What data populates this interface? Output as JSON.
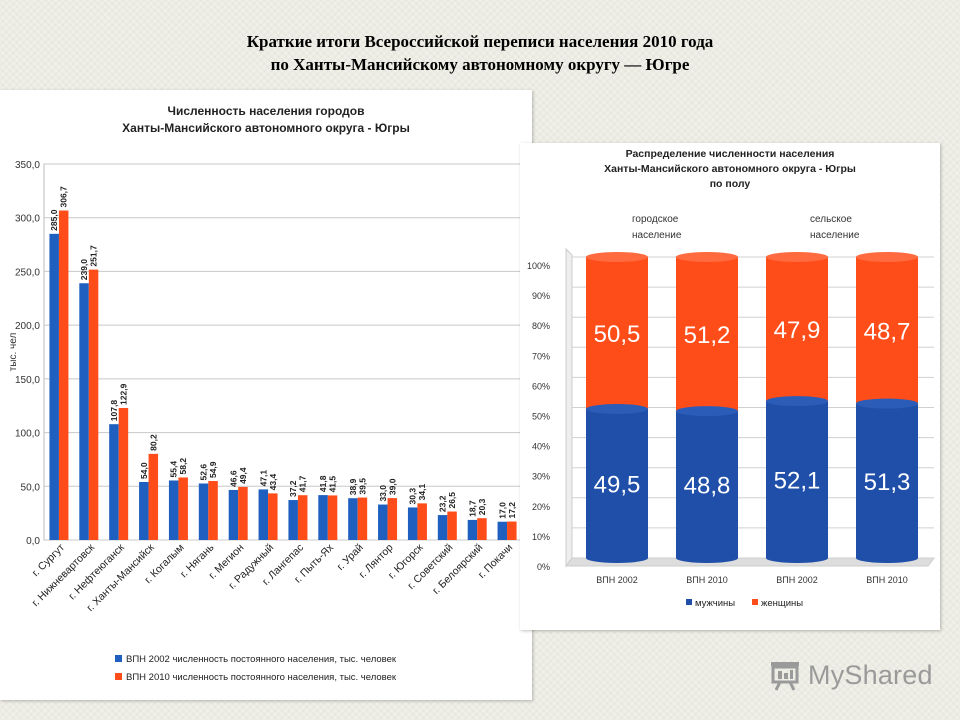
{
  "slide": {
    "title_line1": "Краткие итоги Всероссийской переписи населения 2010 года",
    "title_line2": "по Ханты-Мансийскому автономному округу — Югре"
  },
  "logo": {
    "text": "MyShared",
    "icon": "presentation-board-icon"
  },
  "chart_data": [
    {
      "type": "bar",
      "title": "Численность населения городов\nХанты-Мансийского автономного округа - Югры",
      "ylabel": "тыс. чел",
      "ylim": [
        0,
        350
      ],
      "yticks": [
        "0,0",
        "50,0",
        "100,0",
        "150,0",
        "200,0",
        "250,0",
        "300,0",
        "350,0"
      ],
      "grid": true,
      "legend": "bottom",
      "colors": [
        "#1f5fbf",
        "#ff4d1a"
      ],
      "categories": [
        "г. Сургут",
        "г. Нижневартовск",
        "г. Нефтеюганск",
        "г. Ханты-Мансийск",
        "г. Когалым",
        "г. Нягань",
        "г. Мегион",
        "г. Радужный",
        "г. Лангепас",
        "г. Пыть-Ях",
        "г. Урай",
        "г. Лянтор",
        "г. Югорск",
        "г. Советский",
        "г. Белоярский",
        "г. Покачи"
      ],
      "series": [
        {
          "name": "ВПН 2002 численность постоянного населения, тыс. человек",
          "values": [
            285.0,
            239.0,
            107.8,
            54.0,
            55.4,
            52.6,
            46.6,
            47.1,
            37.2,
            41.8,
            38.9,
            33.0,
            30.3,
            23.2,
            18.7,
            17.0
          ],
          "labels": [
            "285,0",
            "239,0",
            "107,8",
            "54,0",
            "55,4",
            "52,6",
            "46,6",
            "47,1",
            "37,2",
            "41,8",
            "38,9",
            "33,0",
            "30,3",
            "23,2",
            "18,7",
            "17,0"
          ]
        },
        {
          "name": "ВПН 2010 численность постоянного населения, тыс. человек",
          "values": [
            306.7,
            251.7,
            122.9,
            80.2,
            58.2,
            54.9,
            49.4,
            43.4,
            41.7,
            41.5,
            39.5,
            39.0,
            34.1,
            26.5,
            20.3,
            17.2
          ],
          "labels": [
            "306,7",
            "251,7",
            "122,9",
            "80,2",
            "58,2",
            "54,9",
            "49,4",
            "43,4",
            "41,7",
            "41,5",
            "39,5",
            "39,0",
            "34,1",
            "26,5",
            "20,3",
            "17,2"
          ]
        }
      ]
    },
    {
      "type": "bar",
      "stacked": true,
      "percent": true,
      "title": "Распределение численности населения\nХанты-Мансийского автономного округа - Югры\nпо полу",
      "annotations": [
        "городское\nнаселение",
        "сельское\nнаселение"
      ],
      "ylim": [
        0,
        100
      ],
      "yticks": [
        "0%",
        "10%",
        "20%",
        "30%",
        "40%",
        "50%",
        "60%",
        "70%",
        "80%",
        "90%",
        "100%"
      ],
      "grid": true,
      "legend": "bottom",
      "colors": [
        "#1f4fa8",
        "#ff4d1a"
      ],
      "categories": [
        "ВПН 2002",
        "ВПН 2010",
        "ВПН 2002",
        "ВПН 2010"
      ],
      "series": [
        {
          "name": "мужчины",
          "values": [
            49.5,
            48.8,
            52.1,
            51.3
          ],
          "labels": [
            "49,5",
            "48,8",
            "52,1",
            "51,3"
          ]
        },
        {
          "name": "женщины",
          "values": [
            50.5,
            51.2,
            47.9,
            48.7
          ],
          "labels": [
            "50,5",
            "51,2",
            "47,9",
            "48,7"
          ]
        }
      ]
    }
  ]
}
